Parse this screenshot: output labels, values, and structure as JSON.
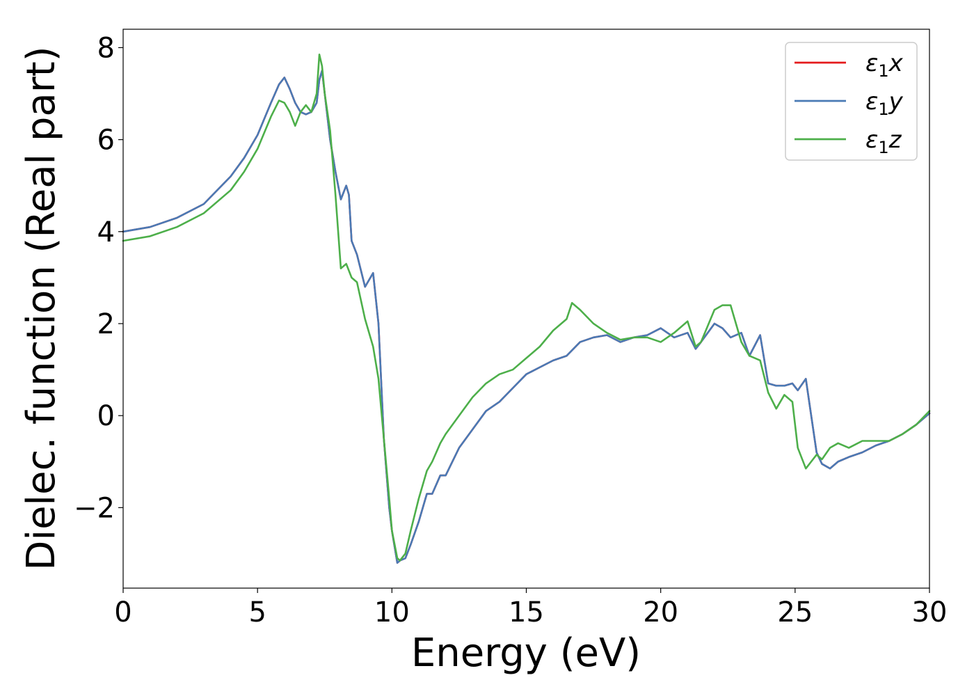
{
  "chart_data": {
    "type": "line",
    "title": "",
    "xlabel": "Energy (eV)",
    "ylabel": "Dielec. function (Real part)",
    "xlim": [
      0,
      30
    ],
    "ylim": [
      -3.75,
      8.4
    ],
    "xticks": [
      0,
      5,
      10,
      15,
      20,
      25,
      30
    ],
    "xtick_labels": [
      "0",
      "5",
      "10",
      "15",
      "20",
      "25",
      "30"
    ],
    "yticks": [
      -2,
      0,
      2,
      4,
      6,
      8
    ],
    "ytick_labels": [
      "−2",
      "0",
      "2",
      "4",
      "6",
      "8"
    ],
    "grid": false,
    "legend_position": "top-right",
    "series": [
      {
        "name": "ε1x",
        "legend_base": "ε",
        "legend_sub": "1",
        "legend_suffix": "x",
        "color": "#e41a1c",
        "x": [
          0,
          1,
          2,
          3,
          4,
          4.5,
          5,
          5.5,
          5.8,
          6.0,
          6.2,
          6.4,
          6.6,
          6.8,
          7.0,
          7.2,
          7.3,
          7.4,
          7.5,
          7.7,
          7.9,
          8.1,
          8.3,
          8.4,
          8.5,
          8.7,
          9.0,
          9.3,
          9.5,
          9.7,
          9.9,
          10.0,
          10.2,
          10.3,
          10.5,
          10.7,
          11.0,
          11.3,
          11.5,
          11.8,
          12.0,
          12.5,
          13.0,
          13.5,
          14.0,
          14.5,
          15.0,
          15.5,
          16.0,
          16.5,
          17.0,
          17.5,
          18.0,
          18.5,
          19.0,
          19.5,
          20.0,
          20.5,
          21.0,
          21.3,
          21.5,
          22.0,
          22.3,
          22.6,
          23.0,
          23.3,
          23.7,
          24.0,
          24.3,
          24.6,
          24.9,
          25.1,
          25.4,
          25.6,
          25.8,
          26.0,
          26.3,
          26.6,
          27.0,
          27.5,
          28.0,
          28.5,
          29.0,
          29.5,
          30.0
        ],
        "y": [
          4.0,
          4.1,
          4.3,
          4.6,
          5.2,
          5.6,
          6.1,
          6.8,
          7.2,
          7.35,
          7.1,
          6.8,
          6.6,
          6.55,
          6.6,
          6.8,
          7.3,
          7.5,
          7.0,
          6.0,
          5.3,
          4.7,
          5.0,
          4.8,
          3.8,
          3.5,
          2.8,
          3.1,
          2.0,
          -0.5,
          -2.0,
          -2.5,
          -3.2,
          -3.15,
          -3.1,
          -2.8,
          -2.3,
          -1.7,
          -1.7,
          -1.3,
          -1.3,
          -0.7,
          -0.3,
          0.1,
          0.3,
          0.6,
          0.9,
          1.05,
          1.2,
          1.3,
          1.6,
          1.7,
          1.75,
          1.6,
          1.7,
          1.75,
          1.9,
          1.7,
          1.8,
          1.45,
          1.6,
          2.0,
          1.9,
          1.7,
          1.8,
          1.3,
          1.75,
          0.7,
          0.65,
          0.65,
          0.7,
          0.55,
          0.8,
          0.0,
          -0.8,
          -1.05,
          -1.15,
          -1.0,
          -0.9,
          -0.8,
          -0.65,
          -0.55,
          -0.4,
          -0.2,
          0.05
        ]
      },
      {
        "name": "ε1y",
        "legend_base": "ε",
        "legend_sub": "1",
        "legend_suffix": "y",
        "color": "#4a7ab5",
        "x": [
          0,
          1,
          2,
          3,
          4,
          4.5,
          5,
          5.5,
          5.8,
          6.0,
          6.2,
          6.4,
          6.6,
          6.8,
          7.0,
          7.2,
          7.3,
          7.4,
          7.5,
          7.7,
          7.9,
          8.1,
          8.3,
          8.4,
          8.5,
          8.7,
          9.0,
          9.3,
          9.5,
          9.7,
          9.9,
          10.0,
          10.2,
          10.3,
          10.5,
          10.7,
          11.0,
          11.3,
          11.5,
          11.8,
          12.0,
          12.5,
          13.0,
          13.5,
          14.0,
          14.5,
          15.0,
          15.5,
          16.0,
          16.5,
          17.0,
          17.5,
          18.0,
          18.5,
          19.0,
          19.5,
          20.0,
          20.5,
          21.0,
          21.3,
          21.5,
          22.0,
          22.3,
          22.6,
          23.0,
          23.3,
          23.7,
          24.0,
          24.3,
          24.6,
          24.9,
          25.1,
          25.4,
          25.6,
          25.8,
          26.0,
          26.3,
          26.6,
          27.0,
          27.5,
          28.0,
          28.5,
          29.0,
          29.5,
          30.0
        ],
        "y": [
          4.0,
          4.1,
          4.3,
          4.6,
          5.2,
          5.6,
          6.1,
          6.8,
          7.2,
          7.35,
          7.1,
          6.8,
          6.6,
          6.55,
          6.6,
          6.8,
          7.3,
          7.5,
          7.0,
          6.0,
          5.3,
          4.7,
          5.0,
          4.8,
          3.8,
          3.5,
          2.8,
          3.1,
          2.0,
          -0.5,
          -2.0,
          -2.5,
          -3.2,
          -3.15,
          -3.1,
          -2.8,
          -2.3,
          -1.7,
          -1.7,
          -1.3,
          -1.3,
          -0.7,
          -0.3,
          0.1,
          0.3,
          0.6,
          0.9,
          1.05,
          1.2,
          1.3,
          1.6,
          1.7,
          1.75,
          1.6,
          1.7,
          1.75,
          1.9,
          1.7,
          1.8,
          1.45,
          1.6,
          2.0,
          1.9,
          1.7,
          1.8,
          1.3,
          1.75,
          0.7,
          0.65,
          0.65,
          0.7,
          0.55,
          0.8,
          0.0,
          -0.8,
          -1.05,
          -1.15,
          -1.0,
          -0.9,
          -0.8,
          -0.65,
          -0.55,
          -0.4,
          -0.2,
          0.05
        ]
      },
      {
        "name": "ε1z",
        "legend_base": "ε",
        "legend_sub": "1",
        "legend_suffix": "z",
        "color": "#4daf4a",
        "x": [
          0,
          1,
          2,
          3,
          4,
          4.5,
          5,
          5.5,
          5.8,
          6.0,
          6.2,
          6.4,
          6.6,
          6.8,
          7.0,
          7.2,
          7.3,
          7.4,
          7.5,
          7.7,
          7.9,
          8.1,
          8.3,
          8.5,
          8.7,
          9.0,
          9.3,
          9.5,
          9.7,
          9.9,
          10.0,
          10.2,
          10.3,
          10.5,
          10.7,
          11.0,
          11.3,
          11.5,
          11.8,
          12.0,
          12.5,
          13.0,
          13.5,
          14.0,
          14.5,
          15.0,
          15.5,
          16.0,
          16.5,
          16.7,
          17.0,
          17.5,
          18.0,
          18.5,
          19.0,
          19.5,
          20.0,
          20.5,
          21.0,
          21.3,
          21.5,
          22.0,
          22.3,
          22.6,
          23.0,
          23.3,
          23.7,
          24.0,
          24.3,
          24.6,
          24.9,
          25.1,
          25.4,
          25.6,
          25.8,
          26.0,
          26.3,
          26.6,
          27.0,
          27.5,
          28.0,
          28.5,
          29.0,
          29.5,
          30.0
        ],
        "y": [
          3.8,
          3.9,
          4.1,
          4.4,
          4.9,
          5.3,
          5.8,
          6.5,
          6.85,
          6.8,
          6.6,
          6.3,
          6.6,
          6.75,
          6.6,
          7.0,
          7.85,
          7.6,
          7.0,
          6.2,
          4.8,
          3.2,
          3.3,
          3.0,
          2.9,
          2.1,
          1.5,
          0.8,
          -0.5,
          -1.8,
          -2.5,
          -3.1,
          -3.15,
          -3.0,
          -2.5,
          -1.8,
          -1.2,
          -1.0,
          -0.6,
          -0.4,
          0.0,
          0.4,
          0.7,
          0.9,
          1.0,
          1.25,
          1.5,
          1.85,
          2.1,
          2.45,
          2.3,
          2.0,
          1.8,
          1.65,
          1.7,
          1.7,
          1.6,
          1.8,
          2.05,
          1.5,
          1.6,
          2.3,
          2.4,
          2.4,
          1.6,
          1.3,
          1.2,
          0.5,
          0.15,
          0.45,
          0.3,
          -0.7,
          -1.15,
          -1.0,
          -0.85,
          -0.95,
          -0.7,
          -0.6,
          -0.7,
          -0.55,
          -0.55,
          -0.55,
          -0.4,
          -0.2,
          0.1
        ]
      }
    ]
  }
}
